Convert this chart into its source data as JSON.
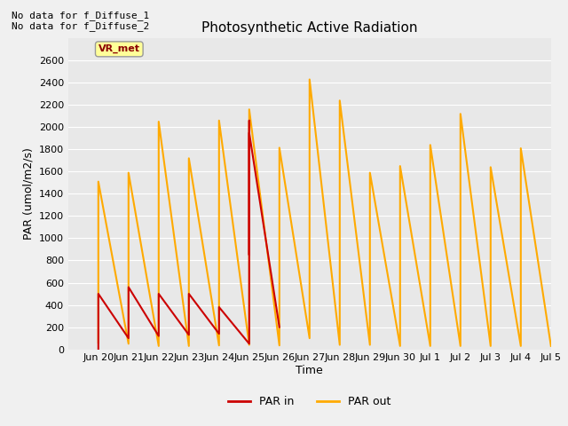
{
  "title": "Photosynthetic Active Radiation",
  "xlabel": "Time",
  "ylabel": "PAR (umol/m2/s)",
  "annotation_top": "No data for f_Diffuse_1\nNo data for f_Diffuse_2",
  "vr_met_label": "VR_met",
  "ylim": [
    0,
    2800
  ],
  "yticks": [
    0,
    200,
    400,
    600,
    800,
    1000,
    1200,
    1400,
    1600,
    1800,
    2000,
    2200,
    2400,
    2600
  ],
  "background_color": "#f0f0f0",
  "plot_bg_color": "#e8e8e8",
  "legend_labels": [
    "PAR in",
    "PAR out"
  ],
  "par_in_color": "#cc0000",
  "par_out_color": "#ffaa00",
  "par_in_x_days": [
    0.0,
    0.5,
    1.0,
    1.5,
    2.0,
    2.5,
    3.0,
    3.5,
    4.0,
    4.5,
    5.0,
    5.45,
    5.55,
    5.9,
    6.1,
    6.5
  ],
  "par_in_y": [
    0,
    500,
    100,
    560,
    120,
    500,
    130,
    500,
    140,
    380,
    50,
    2060,
    850,
    1950,
    200,
    200
  ],
  "par_out_x_days": [
    0.0,
    0.5,
    1.0,
    1.5,
    2.0,
    2.5,
    3.0,
    3.5,
    4.0,
    4.5,
    5.0,
    5.5,
    6.0,
    6.4,
    7.0,
    7.5,
    8.0,
    8.5,
    9.0,
    9.5,
    10.0,
    10.5,
    11.0,
    11.5,
    12.0,
    12.5,
    13.0,
    13.5,
    14.0,
    14.5,
    15.0
  ],
  "par_out_y": [
    60,
    1510,
    50,
    1590,
    30,
    2050,
    30,
    1720,
    35,
    2060,
    40,
    2160,
    35,
    1815,
    100,
    2430,
    40,
    2240,
    40,
    1590,
    30,
    1650,
    30,
    1840,
    30,
    2120,
    30,
    1640,
    30,
    1810,
    30
  ],
  "xtick_days": [
    0,
    1,
    2,
    3,
    4,
    5,
    6,
    7,
    8,
    9,
    10,
    11,
    12,
    13,
    14,
    15
  ],
  "xtick_labels": [
    "Jun 20",
    "Jun 21",
    "Jun 22",
    "Jun 23",
    "Jun 24",
    "Jun 25",
    "Jun 26",
    "Jun 27",
    "Jun 28",
    "Jun 29",
    "Jun 30",
    "Jul 1",
    "Jul 2",
    "Jul 3",
    "Jul 4",
    "Jul 5"
  ]
}
